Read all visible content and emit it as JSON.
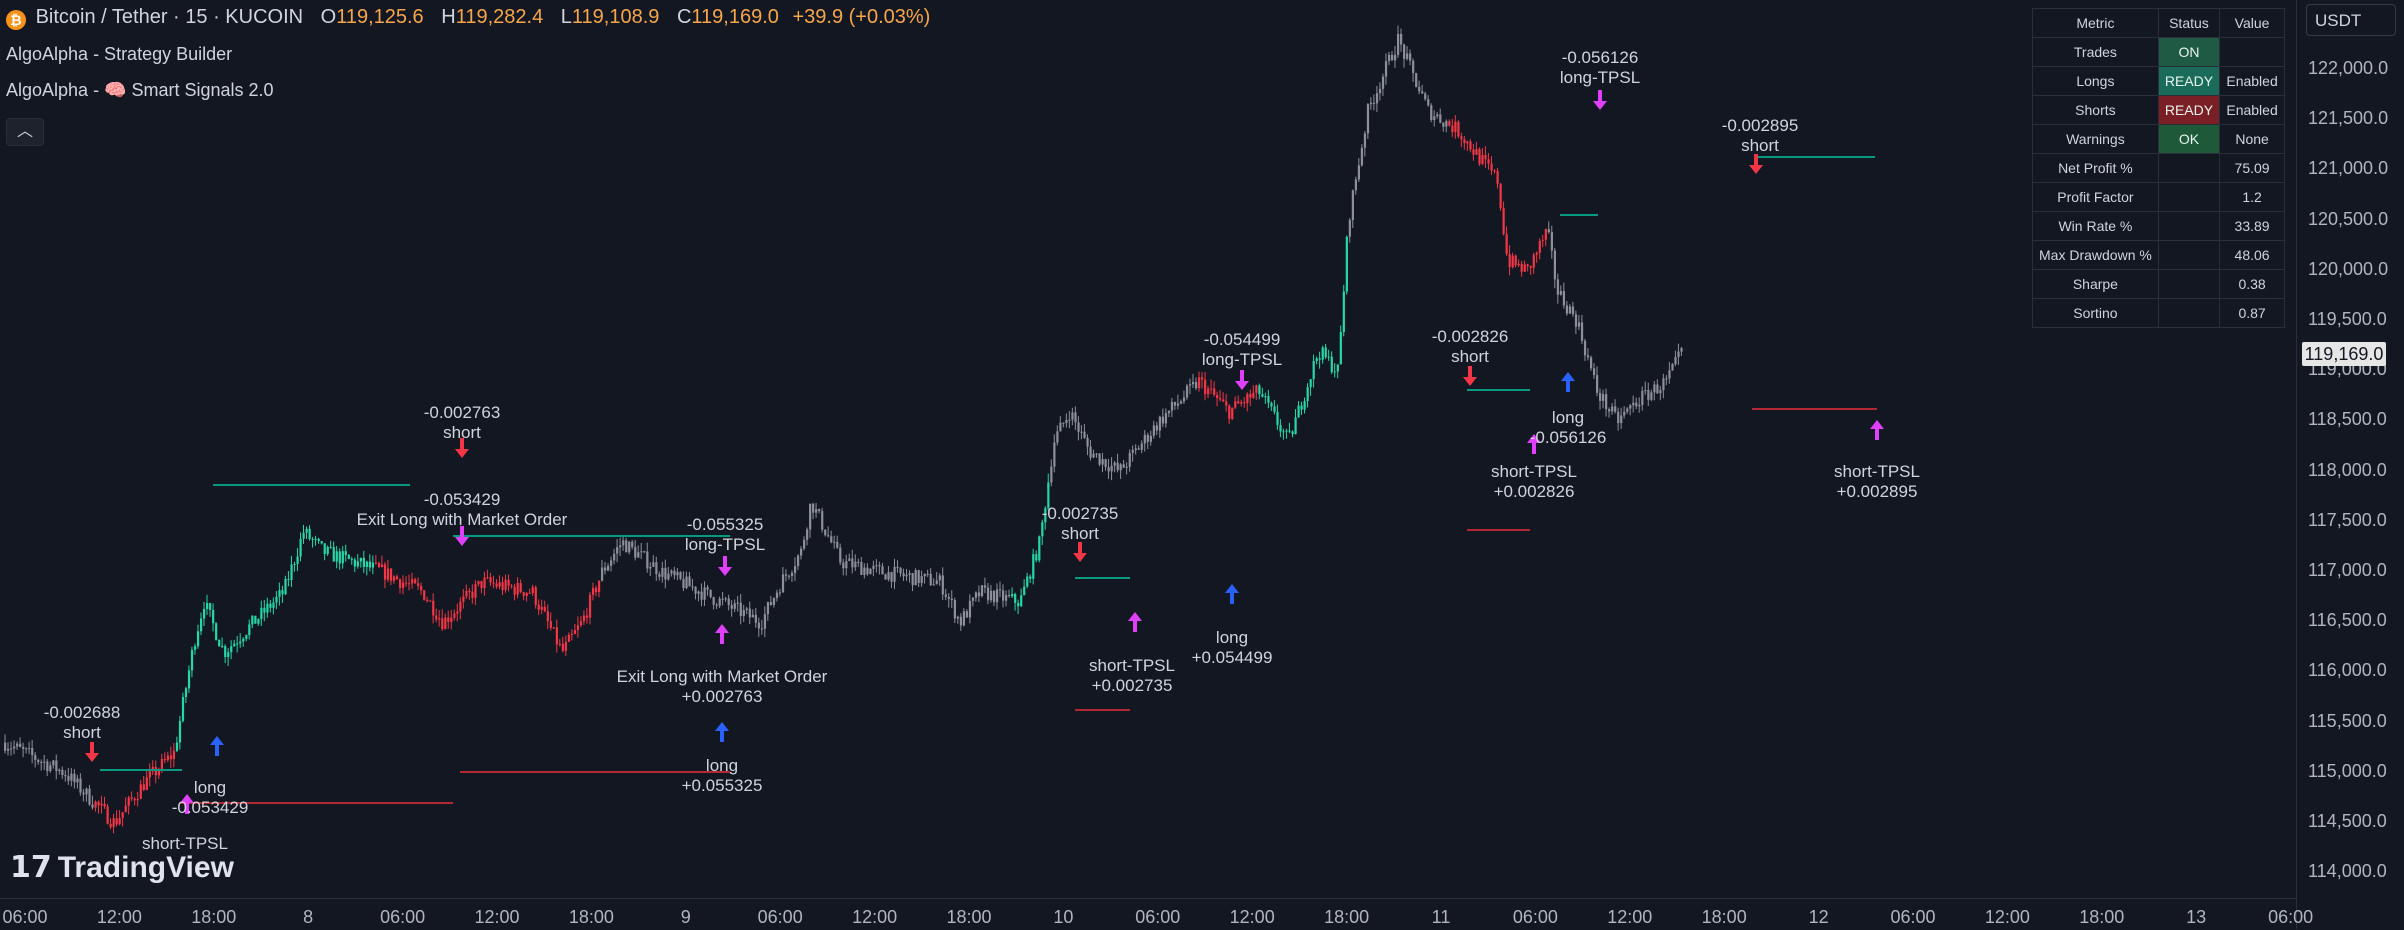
{
  "header": {
    "symbol": "Bitcoin / Tether · 15 · KUCOIN",
    "open_label": "O",
    "open": "119,125.6",
    "high_label": "H",
    "high": "119,282.4",
    "low_label": "L",
    "low": "119,108.9",
    "close_label": "C",
    "close": "119,169.0",
    "change": "+39.9 (+0.03%)",
    "coin_icon": "bitcoin-icon"
  },
  "indicators": [
    "AlgoAlpha - Strategy Builder",
    "AlgoAlpha - 🧠 Smart Signals 2.0"
  ],
  "price_axis": {
    "currency": "USDT",
    "current_price": "119,169.0",
    "labels": [
      "122,000.0",
      "121,500.0",
      "121,000.0",
      "120,500.0",
      "120,000.0",
      "119,500.0",
      "119,000.0",
      "118,500.0",
      "118,000.0",
      "117,500.0",
      "117,000.0",
      "116,500.0",
      "116,000.0",
      "115,500.0",
      "115,000.0",
      "114,500.0",
      "114,000.0"
    ]
  },
  "time_axis": {
    "labels": [
      "06:00",
      "12:00",
      "18:00",
      "8",
      "06:00",
      "12:00",
      "18:00",
      "9",
      "06:00",
      "12:00",
      "18:00",
      "10",
      "06:00",
      "12:00",
      "18:00",
      "11",
      "06:00",
      "12:00",
      "18:00",
      "12",
      "06:00",
      "12:00",
      "18:00",
      "13",
      "06:00"
    ]
  },
  "metrics_table": {
    "headers": [
      "Metric",
      "Status",
      "Value"
    ],
    "rows": [
      {
        "metric": "Trades",
        "status": "ON",
        "value": "",
        "status_color": "#1e5a44"
      },
      {
        "metric": "Longs",
        "status": "READY",
        "value": "Enabled",
        "status_color": "#1b6b5a"
      },
      {
        "metric": "Shorts",
        "status": "READY",
        "value": "Enabled",
        "status_color": "#7a1f25"
      },
      {
        "metric": "Warnings",
        "status": "OK",
        "value": "None",
        "status_color": "#1e5a3a"
      },
      {
        "metric": "Net Profit %",
        "status": "",
        "value": "75.09",
        "status_color": ""
      },
      {
        "metric": "Profit Factor",
        "status": "",
        "value": "1.2",
        "status_color": ""
      },
      {
        "metric": "Win Rate %",
        "status": "",
        "value": "33.89",
        "status_color": ""
      },
      {
        "metric": "Max Drawdown %",
        "status": "",
        "value": "48.06",
        "status_color": ""
      },
      {
        "metric": "Sharpe",
        "status": "",
        "value": "0.38",
        "status_color": ""
      },
      {
        "metric": "Sortino",
        "status": "",
        "value": "0.87",
        "status_color": ""
      }
    ]
  },
  "annotations": [
    [
      "-0.002688",
      "short"
    ],
    [
      "long",
      "-0.053429"
    ],
    [
      "short-TPSL"
    ],
    [
      "-0.002763",
      "short"
    ],
    [
      "-0.053429",
      "Exit Long with Market Order"
    ],
    [
      "-0.055325",
      "long-TPSL"
    ],
    [
      "Exit Long with Market Order",
      "+0.002763"
    ],
    [
      "long",
      "+0.055325"
    ],
    [
      "-0.002735",
      "short"
    ],
    [
      "short-TPSL",
      "+0.002735"
    ],
    [
      "long",
      "+0.054499"
    ],
    [
      "-0.054499",
      "long-TPSL"
    ],
    [
      "-0.002826",
      "short"
    ],
    [
      "long",
      "-0.056126"
    ],
    [
      "short-TPSL",
      "+0.002826"
    ],
    [
      "-0.056126",
      "long-TPSL"
    ],
    [
      "-0.002895",
      "short"
    ],
    [
      "short-TPSL",
      "+0.002895"
    ]
  ],
  "branding": {
    "logo_text": "TradingView",
    "logo_icon": "tradingview-logo-icon"
  },
  "colors": {
    "bull": "#26d7a8",
    "bear": "#f23645",
    "neutral": "#8e9099",
    "short_arrow": "#f23645",
    "long_arrow": "#2962ff",
    "tpsl_arrow": "#e040fb",
    "tp_line": "#089981",
    "sl_line": "#b22833"
  },
  "chart_data": {
    "type": "candlestick",
    "price_range": [
      113900,
      122400
    ],
    "path_keypoints": [
      [
        0,
        115300
      ],
      [
        0.03,
        115000
      ],
      [
        0.04,
        114800
      ],
      [
        0.055,
        114500
      ],
      [
        0.07,
        114900
      ],
      [
        0.085,
        115200
      ],
      [
        0.095,
        116300
      ],
      [
        0.1,
        116700
      ],
      [
        0.11,
        116200
      ],
      [
        0.14,
        116800
      ],
      [
        0.15,
        117400
      ],
      [
        0.16,
        117200
      ],
      [
        0.19,
        117000
      ],
      [
        0.21,
        116800
      ],
      [
        0.22,
        116500
      ],
      [
        0.24,
        116900
      ],
      [
        0.265,
        116800
      ],
      [
        0.28,
        116200
      ],
      [
        0.29,
        116500
      ],
      [
        0.3,
        117000
      ],
      [
        0.31,
        117300
      ],
      [
        0.33,
        117000
      ],
      [
        0.36,
        116700
      ],
      [
        0.38,
        116500
      ],
      [
        0.39,
        116900
      ],
      [
        0.4,
        117200
      ],
      [
        0.405,
        117700
      ],
      [
        0.42,
        117100
      ],
      [
        0.44,
        117000
      ],
      [
        0.47,
        116900
      ],
      [
        0.48,
        116500
      ],
      [
        0.49,
        116800
      ],
      [
        0.51,
        116700
      ],
      [
        0.52,
        117300
      ],
      [
        0.527,
        118300
      ],
      [
        0.535,
        118600
      ],
      [
        0.545,
        118200
      ],
      [
        0.56,
        118000
      ],
      [
        0.58,
        118500
      ],
      [
        0.6,
        118900
      ],
      [
        0.615,
        118600
      ],
      [
        0.63,
        118800
      ],
      [
        0.645,
        118300
      ],
      [
        0.66,
        119200
      ],
      [
        0.67,
        119000
      ],
      [
        0.675,
        120500
      ],
      [
        0.685,
        121600
      ],
      [
        0.7,
        122300
      ],
      [
        0.715,
        121600
      ],
      [
        0.73,
        121400
      ],
      [
        0.75,
        120900
      ],
      [
        0.755,
        120100
      ],
      [
        0.765,
        120000
      ],
      [
        0.775,
        120400
      ],
      [
        0.78,
        119800
      ],
      [
        0.79,
        119500
      ],
      [
        0.8,
        118800
      ],
      [
        0.81,
        118500
      ],
      [
        0.82,
        118700
      ],
      [
        0.835,
        118900
      ],
      [
        0.843,
        119200
      ]
    ],
    "last_close": 119169.0
  }
}
